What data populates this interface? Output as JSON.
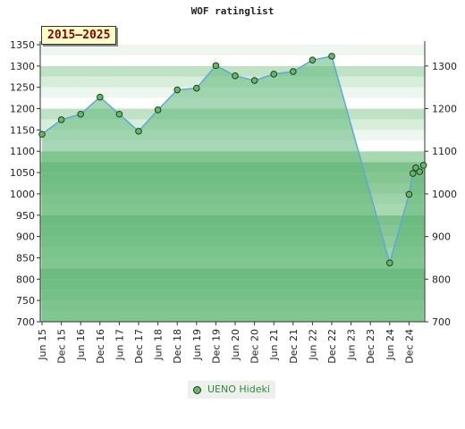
{
  "chart_data": {
    "type": "line",
    "title": "WOF ratinglist",
    "period_label": "2015–2025",
    "xlabel": "",
    "ylabel": "",
    "ylim": [
      700,
      1350
    ],
    "y_ticks_left": [
      700,
      750,
      800,
      850,
      900,
      950,
      1000,
      1050,
      1100,
      1150,
      1200,
      1250,
      1300,
      1350
    ],
    "y_ticks_right": [
      700,
      800,
      900,
      1000,
      1100,
      1200,
      1300
    ],
    "x_ticks": [
      "Jun 15",
      "Dec 15",
      "Jun 16",
      "Dec 16",
      "Jun 17",
      "Dec 17",
      "Jun 18",
      "Dec 18",
      "Jun 19",
      "Dec 19",
      "Jun 20",
      "Dec 20",
      "Jun 21",
      "Dec 21",
      "Jun 22",
      "Dec 22",
      "Jun 23",
      "Dec 23",
      "Jun 24",
      "Dec 24"
    ],
    "legend_position": "bottom-center",
    "series": [
      {
        "name": "UENO Hideki",
        "color": "#5fa8d8",
        "marker_color": "#6ab56a",
        "points": [
          {
            "x": 0.0,
            "y": 1140
          },
          {
            "x": 1.0,
            "y": 1174
          },
          {
            "x": 2.0,
            "y": 1187
          },
          {
            "x": 3.0,
            "y": 1227
          },
          {
            "x": 4.0,
            "y": 1187
          },
          {
            "x": 5.0,
            "y": 1147
          },
          {
            "x": 6.0,
            "y": 1197
          },
          {
            "x": 7.0,
            "y": 1244
          },
          {
            "x": 8.0,
            "y": 1248
          },
          {
            "x": 9.0,
            "y": 1301
          },
          {
            "x": 10.0,
            "y": 1277
          },
          {
            "x": 11.0,
            "y": 1266
          },
          {
            "x": 12.0,
            "y": 1281
          },
          {
            "x": 13.0,
            "y": 1287
          },
          {
            "x": 14.0,
            "y": 1314
          },
          {
            "x": 15.0,
            "y": 1323
          },
          {
            "x": 18.0,
            "y": 838
          },
          {
            "x": 19.0,
            "y": 999
          },
          {
            "x": 19.2,
            "y": 1048
          },
          {
            "x": 19.35,
            "y": 1061
          },
          {
            "x": 19.55,
            "y": 1052
          },
          {
            "x": 19.75,
            "y": 1067
          }
        ]
      }
    ]
  }
}
